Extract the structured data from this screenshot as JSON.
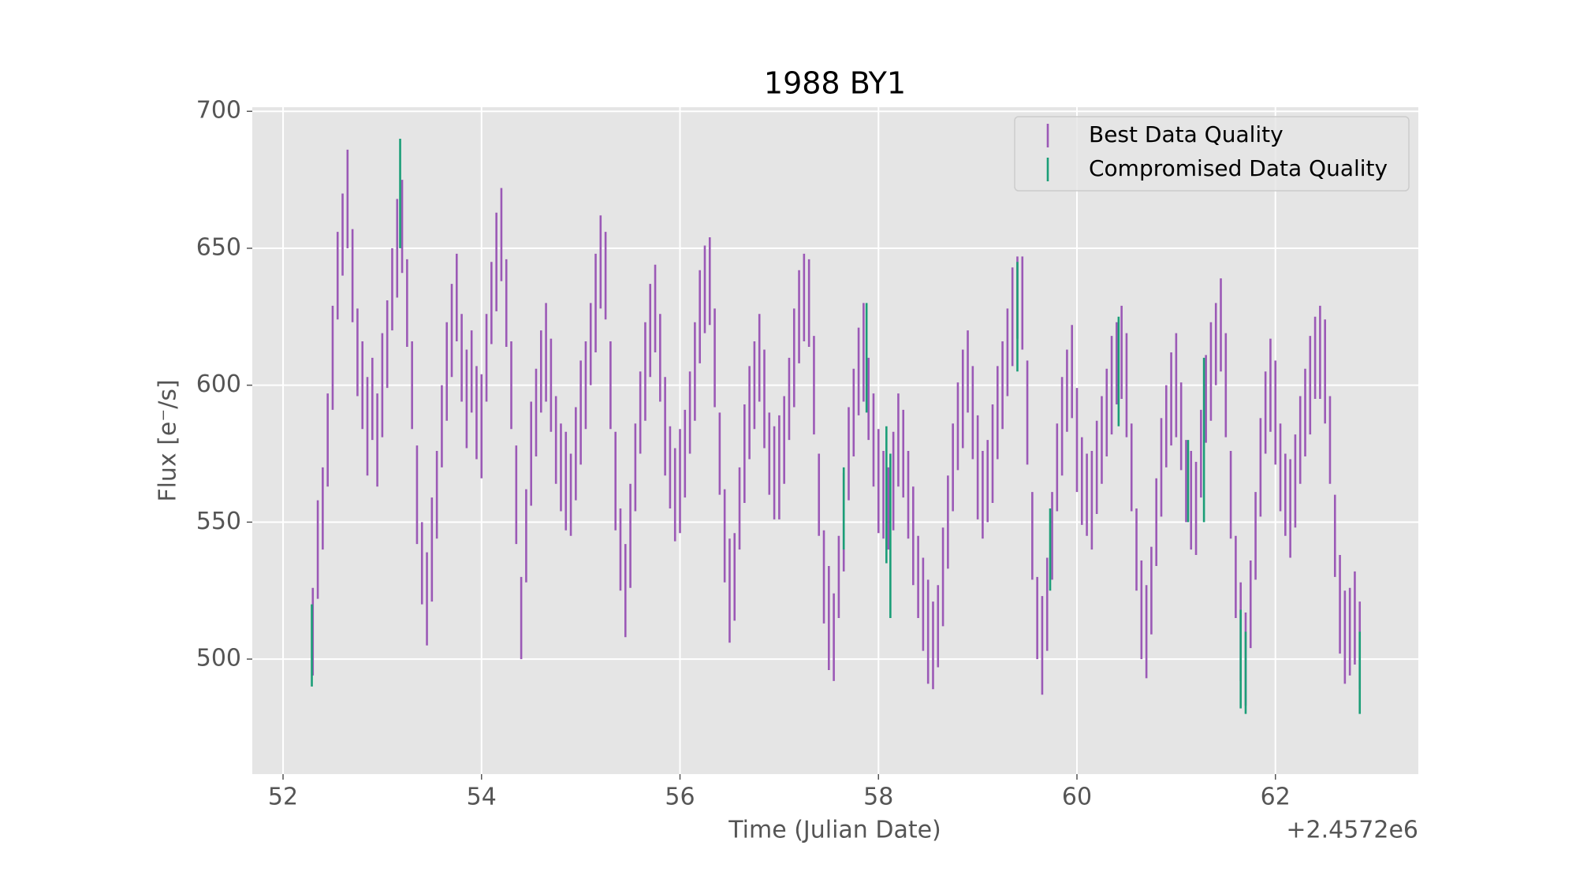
{
  "chart_data": {
    "type": "errorbar",
    "title": "1988 BY1",
    "xlabel": "Time (Julian Date)",
    "ylabel": "Flux [e⁻/s]",
    "x_offset_label": "+2.4572e6",
    "xlim": [
      51.69,
      63.44
    ],
    "ylim": [
      458,
      701.5
    ],
    "xticks": [
      52,
      54,
      56,
      58,
      60,
      62
    ],
    "yticks": [
      500,
      550,
      600,
      650,
      700
    ],
    "grid": true,
    "legend": "upper right",
    "series": [
      {
        "name": "Best Data Quality",
        "color": "#9b59b6",
        "x": [
          52.3,
          52.35,
          52.4,
          52.45,
          52.5,
          52.55,
          52.6,
          52.65,
          52.7,
          52.75,
          52.8,
          52.85,
          52.9,
          52.95,
          53.0,
          53.05,
          53.1,
          53.15,
          53.2,
          53.25,
          53.3,
          53.35,
          53.4,
          53.45,
          53.5,
          53.55,
          53.6,
          53.65,
          53.7,
          53.75,
          53.8,
          53.85,
          53.9,
          53.95,
          54.0,
          54.05,
          54.1,
          54.15,
          54.2,
          54.25,
          54.3,
          54.35,
          54.4,
          54.45,
          54.5,
          54.55,
          54.6,
          54.65,
          54.7,
          54.75,
          54.8,
          54.85,
          54.9,
          54.95,
          55.0,
          55.05,
          55.1,
          55.15,
          55.2,
          55.25,
          55.3,
          55.35,
          55.4,
          55.45,
          55.5,
          55.55,
          55.6,
          55.65,
          55.7,
          55.75,
          55.8,
          55.85,
          55.9,
          55.95,
          56.0,
          56.05,
          56.1,
          56.15,
          56.2,
          56.25,
          56.3,
          56.35,
          56.4,
          56.45,
          56.5,
          56.55,
          56.6,
          56.65,
          56.7,
          56.75,
          56.8,
          56.85,
          56.9,
          56.95,
          57.0,
          57.05,
          57.1,
          57.15,
          57.2,
          57.25,
          57.3,
          57.35,
          57.4,
          57.45,
          57.5,
          57.55,
          57.6,
          57.65,
          57.7,
          57.75,
          57.8,
          57.85,
          57.9,
          57.95,
          58.0,
          58.05,
          58.1,
          58.15,
          58.2,
          58.25,
          58.3,
          58.35,
          58.4,
          58.45,
          58.5,
          58.55,
          58.6,
          58.65,
          58.7,
          58.75,
          58.8,
          58.85,
          58.9,
          58.95,
          59.0,
          59.05,
          59.1,
          59.15,
          59.2,
          59.25,
          59.3,
          59.35,
          59.4,
          59.45,
          59.5,
          59.55,
          59.6,
          59.65,
          59.7,
          59.75,
          59.8,
          59.85,
          59.9,
          59.95,
          60.0,
          60.05,
          60.1,
          60.15,
          60.2,
          60.25,
          60.3,
          60.35,
          60.4,
          60.45,
          60.5,
          60.55,
          60.6,
          60.65,
          60.7,
          60.75,
          60.8,
          60.85,
          60.9,
          60.95,
          61.0,
          61.05,
          61.1,
          61.15,
          61.2,
          61.25,
          61.3,
          61.35,
          61.4,
          61.45,
          61.5,
          61.55,
          61.6,
          61.65,
          61.7,
          61.75,
          61.8,
          61.85,
          61.9,
          61.95,
          62.0,
          62.05,
          62.1,
          62.15,
          62.2,
          62.25,
          62.3,
          62.35,
          62.4,
          62.45,
          62.5,
          62.55,
          62.6,
          62.65,
          62.7,
          62.75,
          62.8,
          62.85
        ],
        "values": [
          510,
          540,
          555,
          580,
          610,
          640,
          655,
          668,
          640,
          612,
          600,
          585,
          595,
          580,
          600,
          615,
          635,
          650,
          658,
          630,
          600,
          560,
          535,
          522,
          540,
          560,
          585,
          605,
          620,
          632,
          610,
          595,
          605,
          590,
          585,
          610,
          630,
          645,
          655,
          630,
          600,
          560,
          515,
          545,
          575,
          590,
          605,
          612,
          600,
          580,
          570,
          565,
          560,
          575,
          590,
          600,
          615,
          630,
          645,
          640,
          600,
          565,
          540,
          525,
          545,
          570,
          590,
          605,
          620,
          628,
          610,
          585,
          570,
          560,
          565,
          575,
          590,
          605,
          625,
          635,
          638,
          610,
          575,
          545,
          525,
          530,
          555,
          575,
          590,
          600,
          610,
          595,
          575,
          568,
          570,
          580,
          595,
          610,
          625,
          632,
          630,
          600,
          560,
          530,
          515,
          508,
          530,
          550,
          575,
          590,
          605,
          612,
          595,
          580,
          565,
          560,
          555,
          565,
          580,
          575,
          560,
          545,
          530,
          520,
          510,
          505,
          512,
          530,
          550,
          570,
          585,
          595,
          605,
          590,
          570,
          560,
          565,
          575,
          590,
          600,
          612,
          625,
          632,
          630,
          590,
          545,
          515,
          505,
          520,
          545,
          570,
          585,
          598,
          605,
          580,
          565,
          560,
          558,
          570,
          580,
          590,
          600,
          608,
          612,
          600,
          570,
          540,
          518,
          510,
          525,
          550,
          570,
          585,
          595,
          600,
          585,
          565,
          558,
          555,
          575,
          595,
          605,
          615,
          622,
          600,
          560,
          530,
          510,
          500,
          520,
          545,
          570,
          590,
          600,
          590,
          570,
          560,
          555,
          565,
          580,
          590,
          600,
          610,
          612,
          605,
          580,
          545,
          520,
          508,
          510,
          515,
          505
        ],
        "errors": [
          16,
          18,
          15,
          17,
          19,
          16,
          15,
          18,
          17,
          16,
          16,
          18,
          15,
          17,
          19,
          16,
          15,
          18,
          17,
          16,
          16,
          18,
          15,
          17,
          19,
          16,
          15,
          18,
          17,
          16,
          16,
          18,
          15,
          17,
          19,
          16,
          15,
          18,
          17,
          16,
          16,
          18,
          15,
          17,
          19,
          16,
          15,
          18,
          17,
          16,
          16,
          18,
          15,
          17,
          19,
          16,
          15,
          18,
          17,
          16,
          16,
          18,
          15,
          17,
          19,
          16,
          15,
          18,
          17,
          16,
          16,
          18,
          15,
          17,
          19,
          16,
          15,
          18,
          17,
          16,
          16,
          18,
          15,
          17,
          19,
          16,
          15,
          18,
          17,
          16,
          16,
          18,
          15,
          17,
          19,
          16,
          15,
          18,
          17,
          16,
          16,
          18,
          15,
          17,
          19,
          16,
          15,
          18,
          17,
          16,
          16,
          18,
          15,
          17,
          19,
          16,
          15,
          18,
          17,
          16,
          16,
          18,
          15,
          17,
          19,
          16,
          15,
          18,
          17,
          16,
          16,
          18,
          15,
          17,
          19,
          16,
          15,
          18,
          17,
          16,
          16,
          18,
          15,
          17,
          19,
          16,
          15,
          18,
          17,
          16,
          16,
          18,
          15,
          17,
          19,
          16,
          15,
          18,
          17,
          16,
          16,
          18,
          15,
          17,
          19,
          16,
          15,
          18,
          17,
          16,
          16,
          18,
          15,
          17,
          19,
          16,
          15,
          18,
          17,
          16,
          16,
          18,
          15,
          17,
          19,
          16,
          15,
          18,
          17,
          16,
          16,
          18,
          15,
          17,
          19,
          16,
          15,
          18,
          17,
          16,
          16,
          18,
          15,
          17,
          19,
          16,
          15,
          18,
          17,
          16,
          17,
          16
        ]
      },
      {
        "name": "Compromised Data Quality",
        "color": "#1b9e77",
        "x": [
          52.29,
          53.18,
          57.65,
          57.88,
          58.08,
          58.12,
          59.4,
          59.73,
          60.42,
          61.12,
          61.28,
          61.65,
          61.7,
          62.85
        ],
        "values": [
          505,
          670,
          555,
          610,
          560,
          545,
          625,
          540,
          605,
          565,
          580,
          500,
          495,
          495
        ],
        "errors": [
          15,
          20,
          15,
          20,
          25,
          30,
          20,
          15,
          20,
          15,
          30,
          18,
          15,
          15
        ]
      }
    ]
  }
}
